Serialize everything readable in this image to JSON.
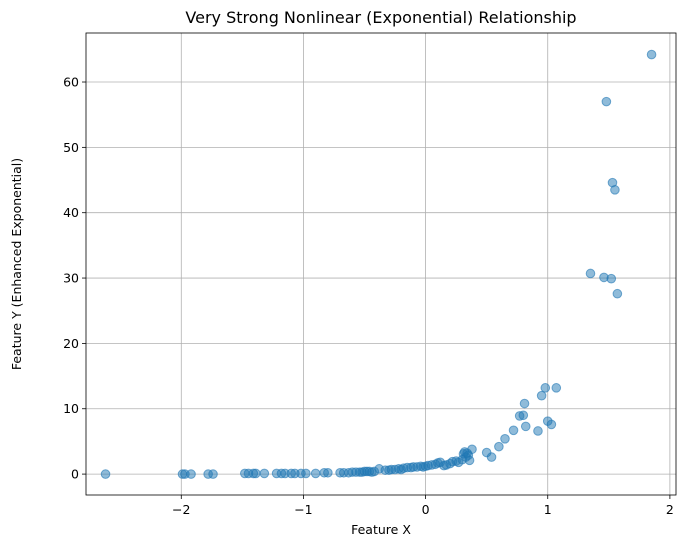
{
  "chart_data": {
    "type": "scatter",
    "title": "Very Strong Nonlinear (Exponential) Relationship",
    "xlabel": "Feature X",
    "ylabel": "Feature Y (Enhanced Exponential)",
    "xlim": [
      -2.78,
      2.05
    ],
    "ylim": [
      -3.2,
      67.5
    ],
    "xticks": [
      -2,
      -1,
      0,
      1,
      2
    ],
    "xtick_labels": [
      "−2",
      "−1",
      "0",
      "1",
      "2"
    ],
    "yticks": [
      0,
      10,
      20,
      30,
      40,
      50,
      60
    ],
    "ytick_labels": [
      "0",
      "10",
      "20",
      "30",
      "40",
      "50",
      "60"
    ],
    "grid": true,
    "color": "#1f77b4",
    "points": [
      [
        -2.62,
        0.0
      ],
      [
        -1.99,
        0.0
      ],
      [
        -1.97,
        0.0
      ],
      [
        -1.92,
        0.0
      ],
      [
        -1.78,
        0.0
      ],
      [
        -1.74,
        0.0
      ],
      [
        -1.48,
        0.1
      ],
      [
        -1.45,
        0.1
      ],
      [
        -1.41,
        0.1
      ],
      [
        -1.39,
        0.1
      ],
      [
        -1.32,
        0.1
      ],
      [
        -1.22,
        0.1
      ],
      [
        -1.18,
        0.1
      ],
      [
        -1.15,
        0.1
      ],
      [
        -1.1,
        0.1
      ],
      [
        -1.07,
        0.1
      ],
      [
        -1.02,
        0.1
      ],
      [
        -0.98,
        0.1
      ],
      [
        -0.9,
        0.1
      ],
      [
        -0.83,
        0.2
      ],
      [
        -0.8,
        0.2
      ],
      [
        -0.7,
        0.2
      ],
      [
        -0.67,
        0.2
      ],
      [
        -0.63,
        0.2
      ],
      [
        -0.6,
        0.3
      ],
      [
        -0.57,
        0.3
      ],
      [
        -0.54,
        0.3
      ],
      [
        -0.52,
        0.3
      ],
      [
        -0.5,
        0.4
      ],
      [
        -0.48,
        0.4
      ],
      [
        -0.46,
        0.4
      ],
      [
        -0.44,
        0.3
      ],
      [
        -0.42,
        0.4
      ],
      [
        -0.38,
        0.8
      ],
      [
        -0.33,
        0.6
      ],
      [
        -0.3,
        0.6
      ],
      [
        -0.28,
        0.7
      ],
      [
        -0.25,
        0.7
      ],
      [
        -0.22,
        0.8
      ],
      [
        -0.2,
        0.7
      ],
      [
        -0.18,
        0.9
      ],
      [
        -0.15,
        1.0
      ],
      [
        -0.12,
        1.0
      ],
      [
        -0.1,
        1.1
      ],
      [
        -0.07,
        1.1
      ],
      [
        -0.04,
        1.2
      ],
      [
        -0.02,
        1.1
      ],
      [
        0.0,
        1.2
      ],
      [
        0.02,
        1.3
      ],
      [
        0.05,
        1.4
      ],
      [
        0.08,
        1.5
      ],
      [
        0.1,
        1.7
      ],
      [
        0.12,
        1.8
      ],
      [
        0.15,
        1.3
      ],
      [
        0.17,
        1.4
      ],
      [
        0.2,
        1.6
      ],
      [
        0.22,
        1.9
      ],
      [
        0.25,
        2.0
      ],
      [
        0.27,
        1.8
      ],
      [
        0.3,
        2.2
      ],
      [
        0.31,
        3.1
      ],
      [
        0.32,
        3.4
      ],
      [
        0.33,
        2.6
      ],
      [
        0.34,
        3.2
      ],
      [
        0.35,
        2.9
      ],
      [
        0.36,
        2.1
      ],
      [
        0.38,
        3.8
      ],
      [
        0.5,
        3.3
      ],
      [
        0.54,
        2.6
      ],
      [
        0.6,
        4.2
      ],
      [
        0.65,
        5.4
      ],
      [
        0.72,
        6.7
      ],
      [
        0.77,
        8.9
      ],
      [
        0.8,
        9.0
      ],
      [
        0.81,
        10.8
      ],
      [
        0.82,
        7.3
      ],
      [
        0.92,
        6.6
      ],
      [
        0.95,
        12.0
      ],
      [
        0.98,
        13.2
      ],
      [
        1.0,
        8.1
      ],
      [
        1.03,
        7.6
      ],
      [
        1.07,
        13.2
      ],
      [
        1.35,
        30.7
      ],
      [
        1.46,
        30.1
      ],
      [
        1.48,
        57.0
      ],
      [
        1.52,
        29.9
      ],
      [
        1.53,
        44.6
      ],
      [
        1.55,
        43.5
      ],
      [
        1.57,
        27.6
      ],
      [
        1.85,
        64.2
      ]
    ]
  }
}
